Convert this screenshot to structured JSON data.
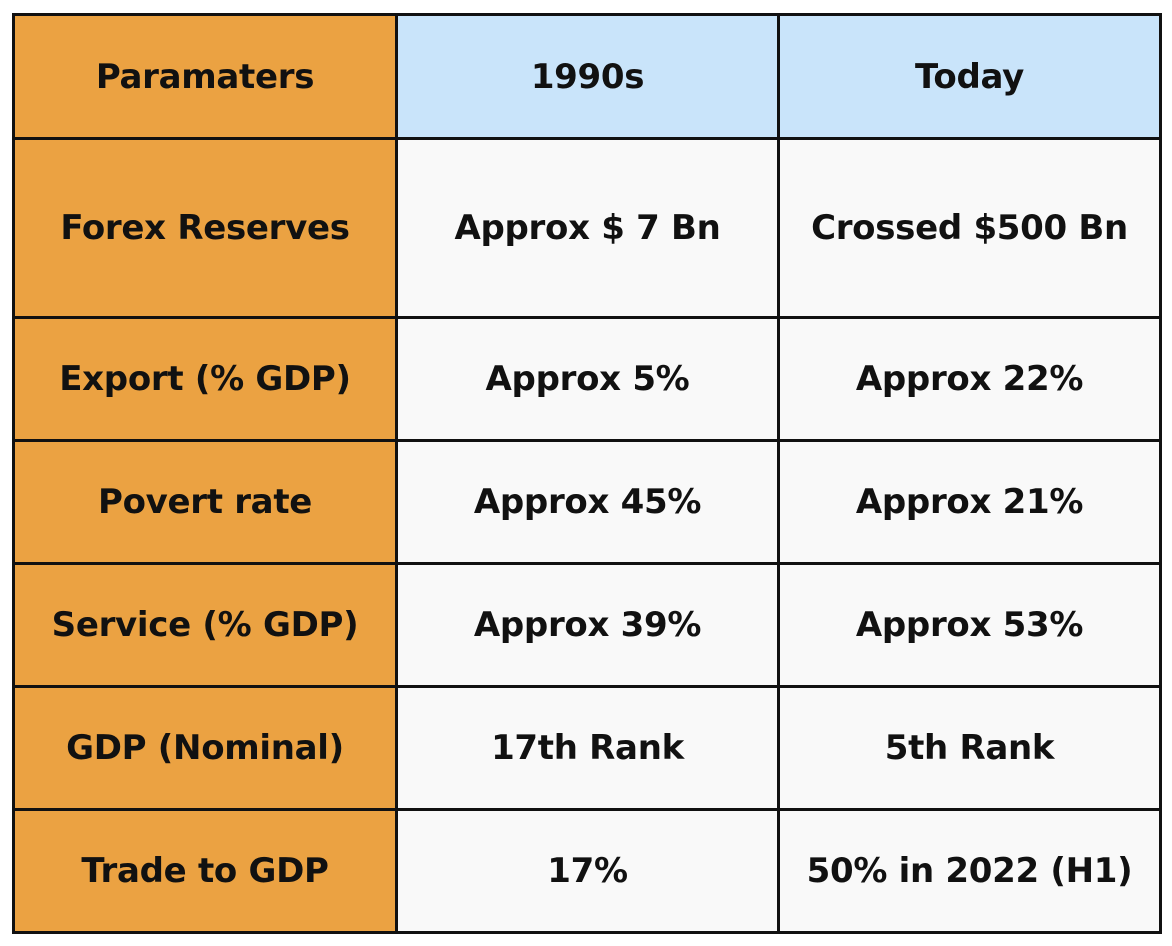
{
  "table": {
    "headers": [
      "Paramaters",
      "1990s",
      "Today"
    ],
    "rows": [
      {
        "parameter": "Forex Reserves",
        "nineties": "Approx $ 7 Bn",
        "today": "Crossed $500 Bn"
      },
      {
        "parameter": "Export (% GDP)",
        "nineties": "Approx 5%",
        "today": "Approx 22%"
      },
      {
        "parameter": "Povert rate",
        "nineties": "Approx 45%",
        "today": "Approx 21%"
      },
      {
        "parameter": "Service (% GDP)",
        "nineties": "Approx 39%",
        "today": "Approx 53%"
      },
      {
        "parameter": "GDP (Nominal)",
        "nineties": "17th Rank",
        "today": "5th Rank"
      },
      {
        "parameter": "Trade to GDP",
        "nineties": "17%",
        "today": "50% in 2022 (H1)"
      }
    ]
  },
  "colors": {
    "parameter_column": "#eba242",
    "header_cells": "#c9e4fa",
    "data_cells": "#f9f9f9",
    "border": "#111111"
  }
}
